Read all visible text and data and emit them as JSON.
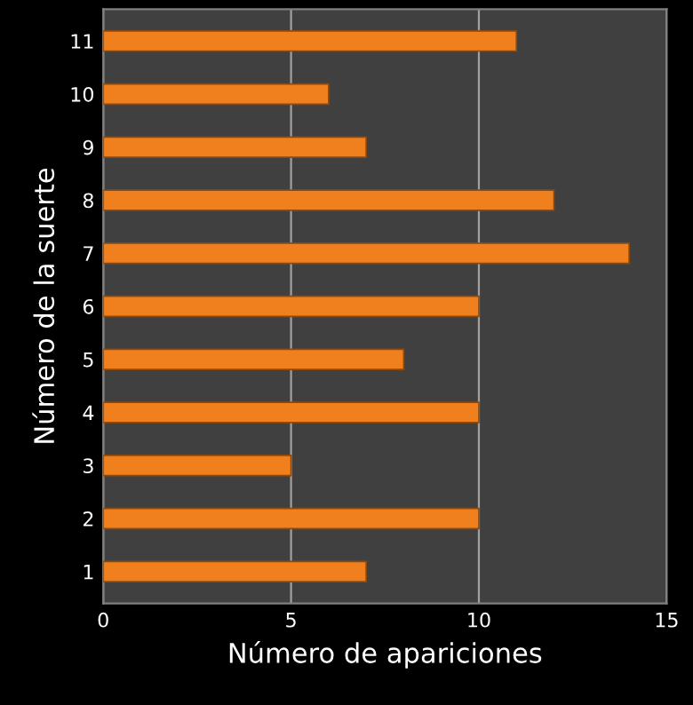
{
  "chart_data": {
    "type": "bar",
    "orientation": "horizontal",
    "xlabel": "Número de apariciones",
    "ylabel": "Número de la suerte",
    "categories": [
      "11",
      "10",
      "9",
      "8",
      "7",
      "6",
      "5",
      "4",
      "3",
      "2",
      "1"
    ],
    "values": [
      11,
      6,
      7,
      12,
      14,
      10,
      8,
      10,
      5,
      10,
      7
    ],
    "color": "#f07f1e",
    "xlim": [
      0,
      15
    ],
    "xticks": [
      0,
      5,
      10,
      15
    ],
    "grid": "x"
  }
}
